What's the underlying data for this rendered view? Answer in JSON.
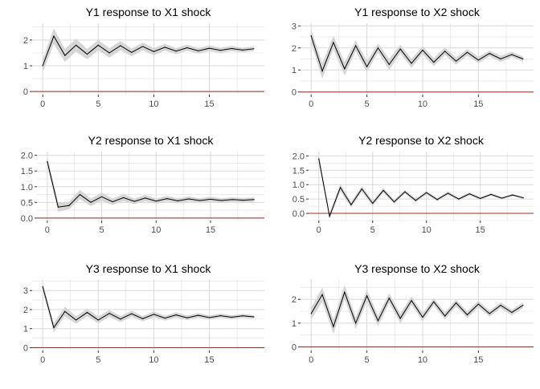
{
  "style": {
    "panel_background": "#ffffff",
    "grid_color": "#d9d9d9",
    "band_color": "#d6d6d6",
    "line_color": "#000000",
    "zero_line_color": "#b22222",
    "text_color": "#000000",
    "tick_text_color": "#4d4d4d"
  },
  "chart_data": [
    {
      "type": "line",
      "title": "Y1 response to X1 shock",
      "xlabel": "",
      "ylabel": "",
      "grid": true,
      "xlim": [
        -0.95,
        19.95
      ],
      "ylim": [
        -0.12,
        2.65
      ],
      "xticks": [
        0,
        5,
        10,
        15
      ],
      "yticks": [
        0,
        1,
        2
      ],
      "x": [
        0,
        1,
        2,
        3,
        4,
        5,
        6,
        7,
        8,
        9,
        10,
        11,
        12,
        13,
        14,
        15,
        16,
        17,
        18,
        19
      ],
      "series": [
        {
          "values": [
            1.0,
            2.15,
            1.4,
            1.8,
            1.45,
            1.8,
            1.5,
            1.78,
            1.52,
            1.75,
            1.55,
            1.72,
            1.57,
            1.7,
            1.58,
            1.68,
            1.6,
            1.67,
            1.61,
            1.66
          ],
          "lower": [
            0.75,
            1.85,
            1.15,
            1.55,
            1.25,
            1.6,
            1.32,
            1.6,
            1.37,
            1.6,
            1.41,
            1.59,
            1.45,
            1.58,
            1.47,
            1.57,
            1.5,
            1.57,
            1.52,
            1.57
          ],
          "upper": [
            1.25,
            2.45,
            1.65,
            2.05,
            1.65,
            2.0,
            1.68,
            1.96,
            1.67,
            1.9,
            1.69,
            1.85,
            1.69,
            1.82,
            1.69,
            1.79,
            1.7,
            1.77,
            1.7,
            1.75
          ]
        }
      ],
      "hline": 0
    },
    {
      "type": "line",
      "title": "Y1 response to X2 shock",
      "xlabel": "",
      "ylabel": "",
      "grid": true,
      "xlim": [
        -0.95,
        19.95
      ],
      "ylim": [
        -0.12,
        3.12
      ],
      "xticks": [
        0,
        5,
        10,
        15
      ],
      "yticks": [
        0,
        1,
        2,
        3
      ],
      "x": [
        0,
        1,
        2,
        3,
        4,
        5,
        6,
        7,
        8,
        9,
        10,
        11,
        12,
        13,
        14,
        15,
        16,
        17,
        18,
        19
      ],
      "series": [
        {
          "values": [
            2.55,
            0.95,
            2.25,
            1.05,
            2.1,
            1.15,
            2.0,
            1.25,
            1.95,
            1.3,
            1.9,
            1.35,
            1.85,
            1.4,
            1.8,
            1.45,
            1.75,
            1.5,
            1.7,
            1.5
          ],
          "lower": [
            2.25,
            0.6,
            1.95,
            0.75,
            1.85,
            0.9,
            1.8,
            1.0,
            1.75,
            1.1,
            1.72,
            1.17,
            1.68,
            1.24,
            1.65,
            1.3,
            1.62,
            1.36,
            1.58,
            1.38
          ],
          "upper": [
            2.85,
            1.3,
            2.55,
            1.35,
            2.35,
            1.4,
            2.2,
            1.5,
            2.15,
            1.5,
            2.08,
            1.53,
            2.02,
            1.56,
            1.95,
            1.6,
            1.88,
            1.64,
            1.82,
            1.62
          ]
        }
      ],
      "hline": 0
    },
    {
      "type": "line",
      "title": "Y2 response to X1 shock",
      "xlabel": "",
      "ylabel": "",
      "grid": true,
      "xlim": [
        -0.95,
        19.95
      ],
      "ylim": [
        -0.08,
        2.12
      ],
      "xticks": [
        0,
        5,
        10,
        15
      ],
      "yticks": [
        0.0,
        0.5,
        1.0,
        1.5,
        2.0
      ],
      "ytick_labels": [
        "0.0",
        "0.5",
        "1.0",
        "1.5",
        "2.0"
      ],
      "x": [
        0,
        1,
        2,
        3,
        4,
        5,
        6,
        7,
        8,
        9,
        10,
        11,
        12,
        13,
        14,
        15,
        16,
        17,
        18,
        19
      ],
      "series": [
        {
          "values": [
            1.8,
            0.35,
            0.4,
            0.75,
            0.5,
            0.68,
            0.52,
            0.65,
            0.53,
            0.64,
            0.54,
            0.62,
            0.55,
            0.61,
            0.56,
            0.6,
            0.56,
            0.59,
            0.57,
            0.59
          ],
          "lower": [
            1.65,
            0.2,
            0.28,
            0.6,
            0.38,
            0.55,
            0.42,
            0.54,
            0.44,
            0.54,
            0.46,
            0.53,
            0.47,
            0.53,
            0.49,
            0.52,
            0.49,
            0.52,
            0.5,
            0.52
          ],
          "upper": [
            1.95,
            0.5,
            0.52,
            0.9,
            0.62,
            0.81,
            0.62,
            0.76,
            0.62,
            0.74,
            0.62,
            0.71,
            0.63,
            0.69,
            0.63,
            0.68,
            0.63,
            0.66,
            0.64,
            0.66
          ]
        }
      ],
      "hline": 0
    },
    {
      "type": "line",
      "title": "Y2 response to X2 shock",
      "xlabel": "",
      "ylabel": "",
      "grid": true,
      "xlim": [
        -0.95,
        19.95
      ],
      "ylim": [
        -0.25,
        2.15
      ],
      "xticks": [
        0,
        5,
        10,
        15
      ],
      "yticks": [
        0.0,
        0.5,
        1.0,
        1.5,
        2.0
      ],
      "ytick_labels": [
        "0.0",
        "0.5",
        "1.0",
        "1.5",
        "2.0"
      ],
      "x": [
        0,
        1,
        2,
        3,
        4,
        5,
        6,
        7,
        8,
        9,
        10,
        11,
        12,
        13,
        14,
        15,
        16,
        17,
        18,
        19
      ],
      "series": [
        {
          "values": [
            1.9,
            -0.1,
            0.9,
            0.3,
            0.85,
            0.35,
            0.8,
            0.4,
            0.75,
            0.45,
            0.72,
            0.48,
            0.7,
            0.5,
            0.68,
            0.52,
            0.66,
            0.53,
            0.64,
            0.54
          ],
          "lower": [
            1.75,
            -0.2,
            0.78,
            0.2,
            0.75,
            0.27,
            0.72,
            0.33,
            0.68,
            0.38,
            0.66,
            0.42,
            0.64,
            0.45,
            0.63,
            0.47,
            0.61,
            0.49,
            0.6,
            0.5
          ],
          "upper": [
            2.05,
            0.0,
            1.02,
            0.4,
            0.95,
            0.43,
            0.88,
            0.47,
            0.82,
            0.52,
            0.78,
            0.54,
            0.76,
            0.55,
            0.73,
            0.57,
            0.71,
            0.57,
            0.68,
            0.58
          ]
        }
      ],
      "hline": 0
    },
    {
      "type": "line",
      "title": "Y3 response to X1 shock",
      "xlabel": "",
      "ylabel": "",
      "grid": true,
      "xlim": [
        -0.95,
        19.95
      ],
      "ylim": [
        -0.15,
        3.6
      ],
      "xticks": [
        0,
        5,
        10,
        15
      ],
      "yticks": [
        0,
        1,
        2,
        3
      ],
      "x": [
        0,
        1,
        2,
        3,
        4,
        5,
        6,
        7,
        8,
        9,
        10,
        11,
        12,
        13,
        14,
        15,
        16,
        17,
        18,
        19
      ],
      "series": [
        {
          "values": [
            3.2,
            1.05,
            1.9,
            1.45,
            1.85,
            1.45,
            1.8,
            1.5,
            1.78,
            1.52,
            1.75,
            1.55,
            1.72,
            1.57,
            1.7,
            1.58,
            1.68,
            1.6,
            1.67,
            1.62
          ],
          "lower": [
            3.0,
            0.8,
            1.65,
            1.25,
            1.65,
            1.27,
            1.62,
            1.34,
            1.62,
            1.38,
            1.6,
            1.42,
            1.59,
            1.45,
            1.58,
            1.47,
            1.57,
            1.5,
            1.57,
            1.53
          ],
          "upper": [
            3.4,
            1.3,
            2.15,
            1.65,
            2.05,
            1.63,
            1.98,
            1.66,
            1.94,
            1.66,
            1.9,
            1.68,
            1.85,
            1.69,
            1.82,
            1.69,
            1.79,
            1.7,
            1.77,
            1.71
          ]
        }
      ],
      "hline": 0
    },
    {
      "type": "line",
      "title": "Y3 response to X2 shock",
      "xlabel": "",
      "ylabel": "",
      "grid": true,
      "xlim": [
        -0.95,
        19.95
      ],
      "ylim": [
        -0.15,
        2.85
      ],
      "xticks": [
        0,
        5,
        10,
        15
      ],
      "yticks": [
        0,
        1,
        2
      ],
      "x": [
        0,
        1,
        2,
        3,
        4,
        5,
        6,
        7,
        8,
        9,
        10,
        11,
        12,
        13,
        14,
        15,
        16,
        17,
        18,
        19
      ],
      "series": [
        {
          "values": [
            1.4,
            2.2,
            0.85,
            2.3,
            1.0,
            2.15,
            1.1,
            2.05,
            1.2,
            1.95,
            1.25,
            1.9,
            1.3,
            1.85,
            1.35,
            1.8,
            1.4,
            1.75,
            1.45,
            1.75
          ],
          "lower": [
            1.15,
            1.9,
            0.55,
            2.0,
            0.75,
            1.9,
            0.88,
            1.85,
            1.0,
            1.77,
            1.08,
            1.74,
            1.15,
            1.7,
            1.21,
            1.66,
            1.27,
            1.63,
            1.33,
            1.63
          ],
          "upper": [
            1.65,
            2.5,
            1.15,
            2.6,
            1.25,
            2.4,
            1.32,
            2.25,
            1.4,
            2.13,
            1.42,
            2.06,
            1.45,
            2.0,
            1.49,
            1.94,
            1.53,
            1.87,
            1.57,
            1.87
          ]
        }
      ],
      "hline": 0
    }
  ]
}
